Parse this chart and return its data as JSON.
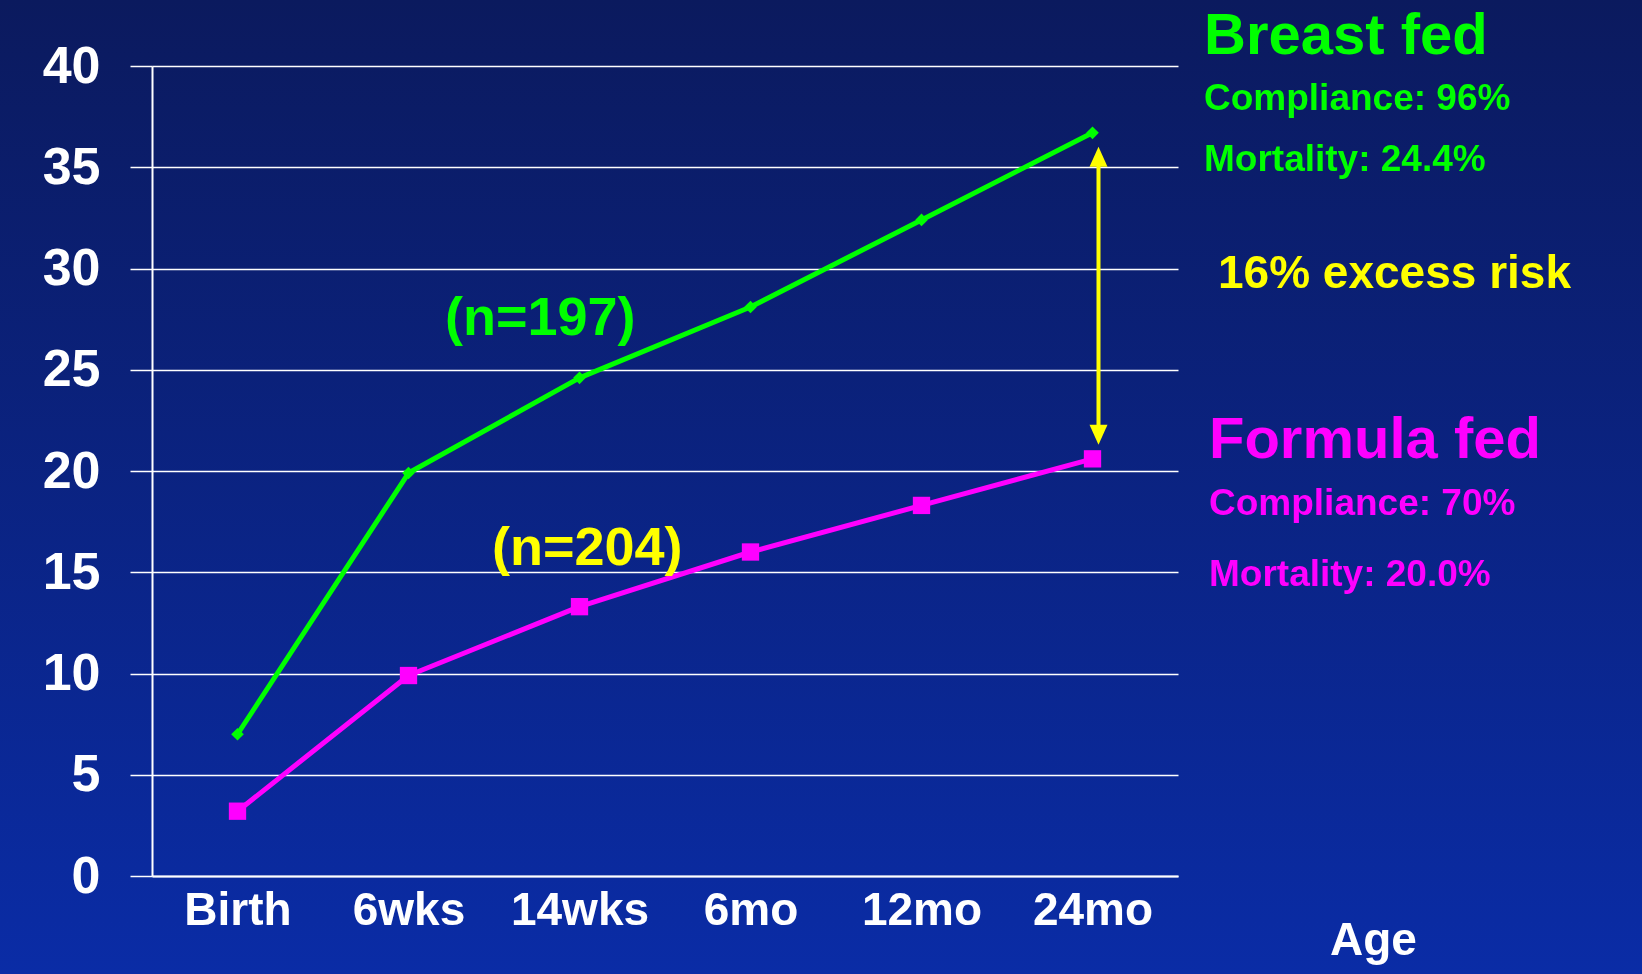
{
  "chart_data": {
    "type": "line",
    "categories": [
      "Birth",
      "6wks",
      "14wks",
      "6mo",
      "12mo",
      "24mo"
    ],
    "xlabel": "Age",
    "series": [
      {
        "name": "Breast fed",
        "color": "#00ff00",
        "marker": "diamond",
        "values": [
          7,
          19.9,
          24.6,
          28.1,
          32.4,
          36.7
        ]
      },
      {
        "name": "Formula fed",
        "color": "#ff00ff",
        "marker": "square",
        "values": [
          3.2,
          9.9,
          13.3,
          16,
          18.3,
          20.6
        ]
      }
    ],
    "ylim": [
      0,
      40
    ],
    "yticks": [
      0,
      5,
      10,
      15,
      20,
      25,
      30,
      35,
      40
    ],
    "grid": "y",
    "legend": false,
    "annotations": [
      "Compliance: 96%",
      "Mortality: 24.4%",
      "16% excess risk",
      "Compliance: 70%",
      "Mortality: 20.0%",
      "(n=197)",
      "(n=204)"
    ]
  }
}
